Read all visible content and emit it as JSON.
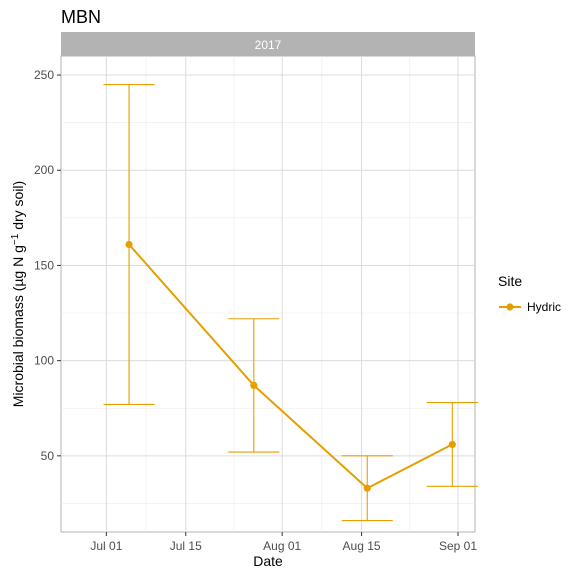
{
  "chart_data": {
    "type": "line",
    "title": "MBN",
    "facet": "2017",
    "xlabel": "Date",
    "ylabel": "Microbial biomass (µg N g⁻¹ dry soil)",
    "ylabel_parts": {
      "before": "Microbial biomass (µg N g",
      "superscript": "−1",
      "after": " dry soil)"
    },
    "x_ticks": [
      {
        "date": "2017-07-01",
        "label": "Jul 01"
      },
      {
        "date": "2017-07-15",
        "label": "Jul 15"
      },
      {
        "date": "2017-08-01",
        "label": "Aug 01"
      },
      {
        "date": "2017-08-15",
        "label": "Aug 15"
      },
      {
        "date": "2017-09-01",
        "label": "Sep 01"
      }
    ],
    "xlim": [
      "2017-06-23",
      "2017-09-04"
    ],
    "y_ticks": [
      50,
      100,
      150,
      200,
      250
    ],
    "ylim": [
      10,
      260
    ],
    "grid": true,
    "legend": {
      "title": "Site",
      "position": "right"
    },
    "series": [
      {
        "name": "Hydric",
        "color": "#E69F00",
        "points": [
          {
            "x": "2017-07-05",
            "y": 161,
            "ymin": 77,
            "ymax": 245
          },
          {
            "x": "2017-07-27",
            "y": 87,
            "ymin": 52,
            "ymax": 122
          },
          {
            "x": "2017-08-16",
            "y": 33,
            "ymin": 16,
            "ymax": 50
          },
          {
            "x": "2017-08-31",
            "y": 56,
            "ymin": 34,
            "ymax": 78
          }
        ]
      }
    ]
  }
}
